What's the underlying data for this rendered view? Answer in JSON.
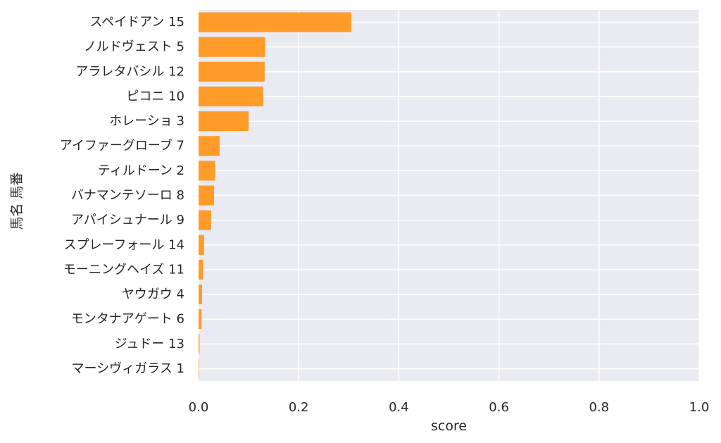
{
  "chart_data": {
    "type": "bar",
    "orientation": "horizontal",
    "xlabel": "score",
    "ylabel": "馬名 馬番",
    "xlim": [
      0,
      1
    ],
    "x_ticks": [
      "0.0",
      "0.2",
      "0.4",
      "0.6",
      "0.8",
      "1.0"
    ],
    "grid": true,
    "bar_color": "#ff9b29",
    "plot_background": "#eaeaf2",
    "categories": [
      "スペイドアン 15",
      "ノルドヴェスト 5",
      "アラレタバシル 12",
      "ピコニ 10",
      "ホレーショ 3",
      "アイファーグローブ 7",
      "ティルドーン 2",
      "バナマンテソーロ 8",
      "アパイシュナール 9",
      "スプレーフォール 14",
      "モーニングヘイズ 11",
      "ヤウガウ 4",
      "モンタナアゲート 6",
      "ジュドー 13",
      "マーシヴィガラス 1"
    ],
    "values": [
      0.305,
      0.133,
      0.132,
      0.129,
      0.1,
      0.042,
      0.033,
      0.031,
      0.025,
      0.011,
      0.009,
      0.007,
      0.006,
      0.002,
      0.001
    ]
  }
}
